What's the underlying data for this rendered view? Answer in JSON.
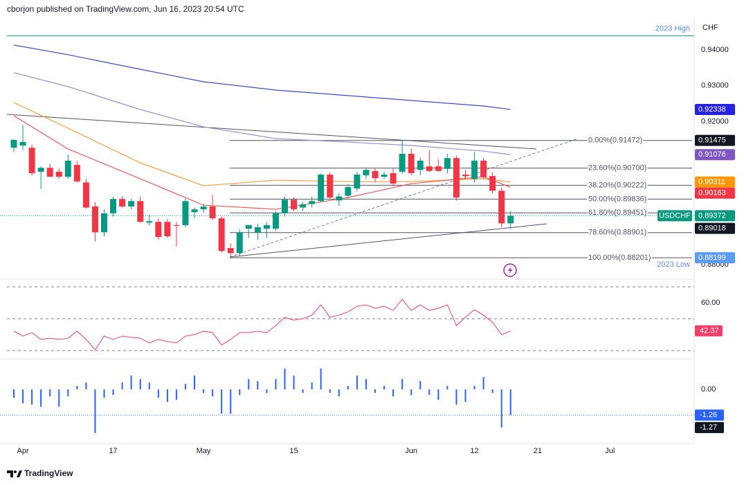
{
  "header": "cborjon published on TradingView.com, Jun 16, 2023 20:54 UTC",
  "footer": "TradingView",
  "chart_data": [
    {
      "type": "candlestick",
      "symbol": "USDCHF",
      "currency": "CHF",
      "categories": [
        null,
        "Apr",
        null,
        null,
        null,
        null,
        null,
        null,
        null,
        null,
        null,
        "17",
        null,
        null,
        null,
        null,
        null,
        null,
        null,
        null,
        null,
        "May",
        null,
        null,
        null,
        null,
        null,
        null,
        null,
        null,
        null,
        "15",
        null,
        null,
        null,
        null,
        null,
        null,
        null,
        null,
        null,
        null,
        null,
        null,
        "Jun",
        null,
        null,
        null,
        null,
        null,
        null,
        "12",
        null,
        null,
        null,
        null
      ],
      "future_categories": [
        null,
        null,
        "21",
        null,
        null,
        null,
        null,
        null,
        null,
        null,
        "Jul"
      ],
      "open": [
        0.9127,
        0.9133,
        0.9127,
        0.906,
        0.9071,
        0.906,
        0.9046,
        0.9079,
        0.903,
        0.8963,
        0.8891,
        0.8944,
        0.8984,
        0.8963,
        0.8978,
        0.8918,
        0.892,
        0.892,
        0.8911,
        0.8911,
        0.8947,
        0.8955,
        0.8963,
        0.893,
        0.8847,
        0.8833,
        0.8901,
        0.8891,
        0.8901,
        0.8901,
        0.8944,
        0.8982,
        0.896,
        0.897,
        0.8978,
        0.9052,
        0.898,
        0.8993,
        0.9013,
        0.905,
        0.9062,
        0.9046,
        0.9056,
        0.906,
        0.911,
        0.9065,
        0.9075,
        0.9075,
        0.9068,
        0.9098,
        0.9052,
        0.904,
        0.9091,
        0.9048,
        0.9007,
        0.8916
      ],
      "high": [
        0.915,
        0.919,
        0.9135,
        0.9075,
        0.9082,
        0.907,
        0.9108,
        0.909,
        0.904,
        0.8975,
        0.8955,
        0.899,
        0.8992,
        0.8985,
        0.899,
        0.894,
        0.893,
        0.8928,
        0.892,
        0.8985,
        0.896,
        0.897,
        0.8995,
        0.8935,
        0.886,
        0.89,
        0.8912,
        0.8915,
        0.892,
        0.895,
        0.899,
        0.8988,
        0.8975,
        0.899,
        0.9055,
        0.9058,
        0.9,
        0.9025,
        0.906,
        0.9072,
        0.907,
        0.906,
        0.907,
        0.9147,
        0.9125,
        0.91,
        0.912,
        0.9095,
        0.911,
        0.9105,
        0.9065,
        0.9115,
        0.9098,
        0.9058,
        0.9015,
        0.895
      ],
      "low": [
        0.9115,
        0.912,
        0.905,
        0.9012,
        0.9045,
        0.904,
        0.904,
        0.903,
        0.8957,
        0.8865,
        0.888,
        0.8935,
        0.896,
        0.8955,
        0.8918,
        0.891,
        0.887,
        0.8875,
        0.8853,
        0.8905,
        0.893,
        0.8945,
        0.8925,
        0.8835,
        0.882,
        0.8825,
        0.8875,
        0.887,
        0.8875,
        0.8895,
        0.8935,
        0.895,
        0.895,
        0.896,
        0.8975,
        0.8985,
        0.8965,
        0.8985,
        0.9005,
        0.904,
        0.903,
        0.904,
        0.902,
        0.9055,
        0.905,
        0.905,
        0.906,
        0.906,
        0.9055,
        0.898,
        0.904,
        0.903,
        0.904,
        0.9,
        0.8905,
        0.89
      ],
      "close": [
        0.9149,
        0.9143,
        0.9056,
        0.9071,
        0.9046,
        0.9046,
        0.9091,
        0.9033,
        0.896,
        0.8891,
        0.8944,
        0.8984,
        0.8963,
        0.8978,
        0.892,
        0.8922,
        0.8878,
        0.888,
        0.8909,
        0.8978,
        0.8955,
        0.8963,
        0.893,
        0.8839,
        0.8833,
        0.8891,
        0.8911,
        0.8905,
        0.8911,
        0.8944,
        0.8982,
        0.8955,
        0.8969,
        0.8978,
        0.9052,
        0.8988,
        0.8991,
        0.9017,
        0.9052,
        0.9065,
        0.9042,
        0.9052,
        0.9027,
        0.911,
        0.9056,
        0.9091,
        0.9062,
        0.9062,
        0.9098,
        0.8988,
        0.9048,
        0.9091,
        0.9045,
        0.9007,
        0.8916,
        0.8937
      ],
      "up_color": "#089981",
      "down_color": "#f23645",
      "ylim": [
        0.8762,
        0.9485
      ],
      "yticks": [
        {
          "value": 0.94,
          "label": "0.94000"
        },
        {
          "value": 0.93,
          "label": "0.93000"
        },
        {
          "value": 0.92,
          "label": "0.92000"
        },
        {
          "value": 0.88,
          "label": "0.88000"
        }
      ],
      "moving_averages": [
        {
          "color": "#3f48cc",
          "x": [
            0,
            6,
            14,
            21,
            29,
            37,
            44,
            52,
            55
          ],
          "values": [
            0.94135,
            0.93865,
            0.93458,
            0.9311,
            0.92878,
            0.92724,
            0.92588,
            0.92433,
            0.92338
          ]
        },
        {
          "color": "#9c8ccb",
          "x": [
            0,
            6,
            14,
            21,
            29,
            37,
            44,
            52,
            55
          ],
          "values": [
            0.93362,
            0.92975,
            0.92337,
            0.91853,
            0.91524,
            0.91428,
            0.91331,
            0.91176,
            0.91076
          ]
        },
        {
          "color": "#ff9b3d",
          "x": [
            0,
            6,
            14,
            21,
            29,
            37,
            44,
            52,
            55
          ],
          "values": [
            0.9253,
            0.91815,
            0.90848,
            0.90209,
            0.90364,
            0.90325,
            0.90325,
            0.90403,
            0.90311
          ]
        },
        {
          "color": "#f0585a",
          "x": [
            0,
            6,
            14,
            21,
            29,
            37,
            44,
            52,
            55
          ],
          "values": [
            0.92163,
            0.91234,
            0.90403,
            0.89668,
            0.89552,
            0.8988,
            0.90267,
            0.90461,
            0.90163
          ]
        }
      ],
      "fib_levels": [
        {
          "label": "0.00%(0.91472)",
          "value": 0.91472
        },
        {
          "label": "23.60%(0.90700)",
          "value": 0.907
        },
        {
          "label": "38.20%(0.90222)",
          "value": 0.90222
        },
        {
          "label": "50.00%(0.89836)",
          "value": 0.89836
        },
        {
          "label": "61.80%(0.89451)",
          "value": 0.89451
        },
        {
          "label": "78.60%(0.88901)",
          "value": 0.88901
        },
        {
          "label": "100.00%(0.88201)",
          "value": 0.88201
        }
      ],
      "extremes": [
        {
          "label": "2023 High",
          "value": 0.9439,
          "color": "#089981"
        },
        {
          "label": "2023 Low",
          "value": 0.88201
        }
      ],
      "price_tags": [
        {
          "value": 0.92338,
          "color": "#2424e0"
        },
        {
          "value": 0.91475,
          "color": "#131722"
        },
        {
          "value": 0.91076,
          "color": "#7e57c2"
        },
        {
          "value": 0.90311,
          "color": "#ff9800"
        },
        {
          "value": 0.90163,
          "color": "#f23645"
        },
        {
          "value": 0.89372,
          "color": "#089981",
          "label": "USDCHF"
        },
        {
          "value": 0.89018,
          "color": "#131722"
        },
        {
          "value": 0.88199,
          "color": "#5b9cf6"
        }
      ]
    },
    {
      "type": "line",
      "color": "#f23f6a",
      "values": [
        42.2,
        39.1,
        41.3,
        37.0,
        37.8,
        37.0,
        37.8,
        42.2,
        37.0,
        30.4,
        39.1,
        37.0,
        39.1,
        38.3,
        37.8,
        34.8,
        37.0,
        35.7,
        34.8,
        39.1,
        40.0,
        42.2,
        41.3,
        33.5,
        37.0,
        41.3,
        41.3,
        42.2,
        41.3,
        45.7,
        50.9,
        49.1,
        50.0,
        52.2,
        58.7,
        50.9,
        52.2,
        54.3,
        57.8,
        58.7,
        56.5,
        57.8,
        55.2,
        62.2,
        55.2,
        58.7,
        55.2,
        56.5,
        58.7,
        45.7,
        50.9,
        55.7,
        52.2,
        47.8,
        40.0,
        42.37
      ],
      "ylim": [
        26.1,
        73.9
      ],
      "yticks": [
        {
          "value": 60,
          "label": "60.00"
        }
      ],
      "levels": [
        70,
        50,
        30
      ]
    },
    {
      "type": "bar",
      "color": "#2962ff",
      "values": [
        -0.41,
        -0.68,
        -0.75,
        -0.85,
        -0.34,
        -0.85,
        -0.34,
        0.17,
        0.34,
        -2.14,
        -0.41,
        -0.27,
        0.34,
        0.68,
        0.51,
        0.34,
        -0.41,
        -0.61,
        -0.51,
        0.27,
        0.68,
        -0.17,
        -0.34,
        -1.19,
        -1.19,
        -0.27,
        0.51,
        0.41,
        -0.17,
        0.51,
        1.02,
        0.68,
        -0.17,
        0.34,
        1.02,
        -0.17,
        -0.34,
        0.17,
        0.68,
        0.51,
        -0.17,
        0.17,
        -0.34,
        0.51,
        -0.27,
        0.41,
        -0.27,
        -0.51,
        0.17,
        -0.75,
        -0.61,
        0.17,
        0.61,
        -0.17,
        -1.87,
        -1.26
      ],
      "ylim": [
        -2.65,
        1.43
      ],
      "yticks": [
        {
          "value": 0,
          "label": "0.00"
        }
      ],
      "signal_value": -1.27
    }
  ]
}
